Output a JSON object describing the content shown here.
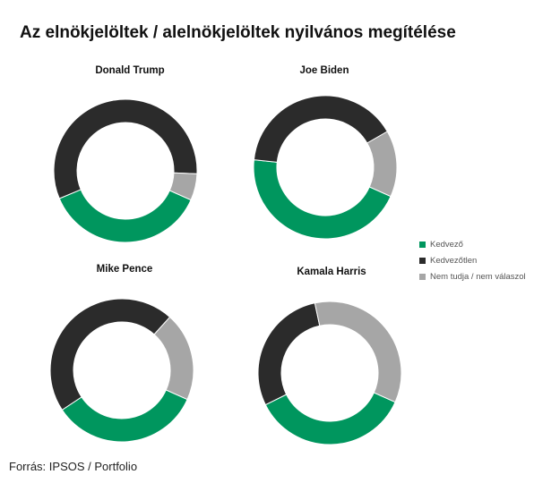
{
  "title": "Az elnökjelöltek / alelnökjelöltek nyilvános megítélése",
  "source": "Forrás: IPSOS / Portfolio",
  "legend": [
    {
      "label": "Kedvező",
      "color": "#00965e"
    },
    {
      "label": "Kedvezőtlen",
      "color": "#2b2b2b"
    },
    {
      "label": "Nem tudja / nem válaszol",
      "color": "#a6a6a6"
    }
  ],
  "chart_data": [
    {
      "type": "donut",
      "title": "Donald Trump",
      "categories": [
        "Kedvező",
        "Kedvezőtlen",
        "Nem tudja / nem válaszol"
      ],
      "values": [
        37,
        57,
        6
      ]
    },
    {
      "type": "donut",
      "title": "Joe Biden",
      "categories": [
        "Kedvező",
        "Kedvezőtlen",
        "Nem tudja / nem válaszol"
      ],
      "values": [
        45,
        40,
        15
      ]
    },
    {
      "type": "donut",
      "title": "Mike Pence",
      "categories": [
        "Kedvező",
        "Kedvezőtlen",
        "Nem tudja / nem válaszol"
      ],
      "values": [
        34,
        46,
        20
      ]
    },
    {
      "type": "donut",
      "title": "Kamala Harris",
      "categories": [
        "Kedvező",
        "Kedvezőtlen",
        "Nem tudja / nem válaszol"
      ],
      "values": [
        36,
        29,
        35
      ]
    }
  ]
}
